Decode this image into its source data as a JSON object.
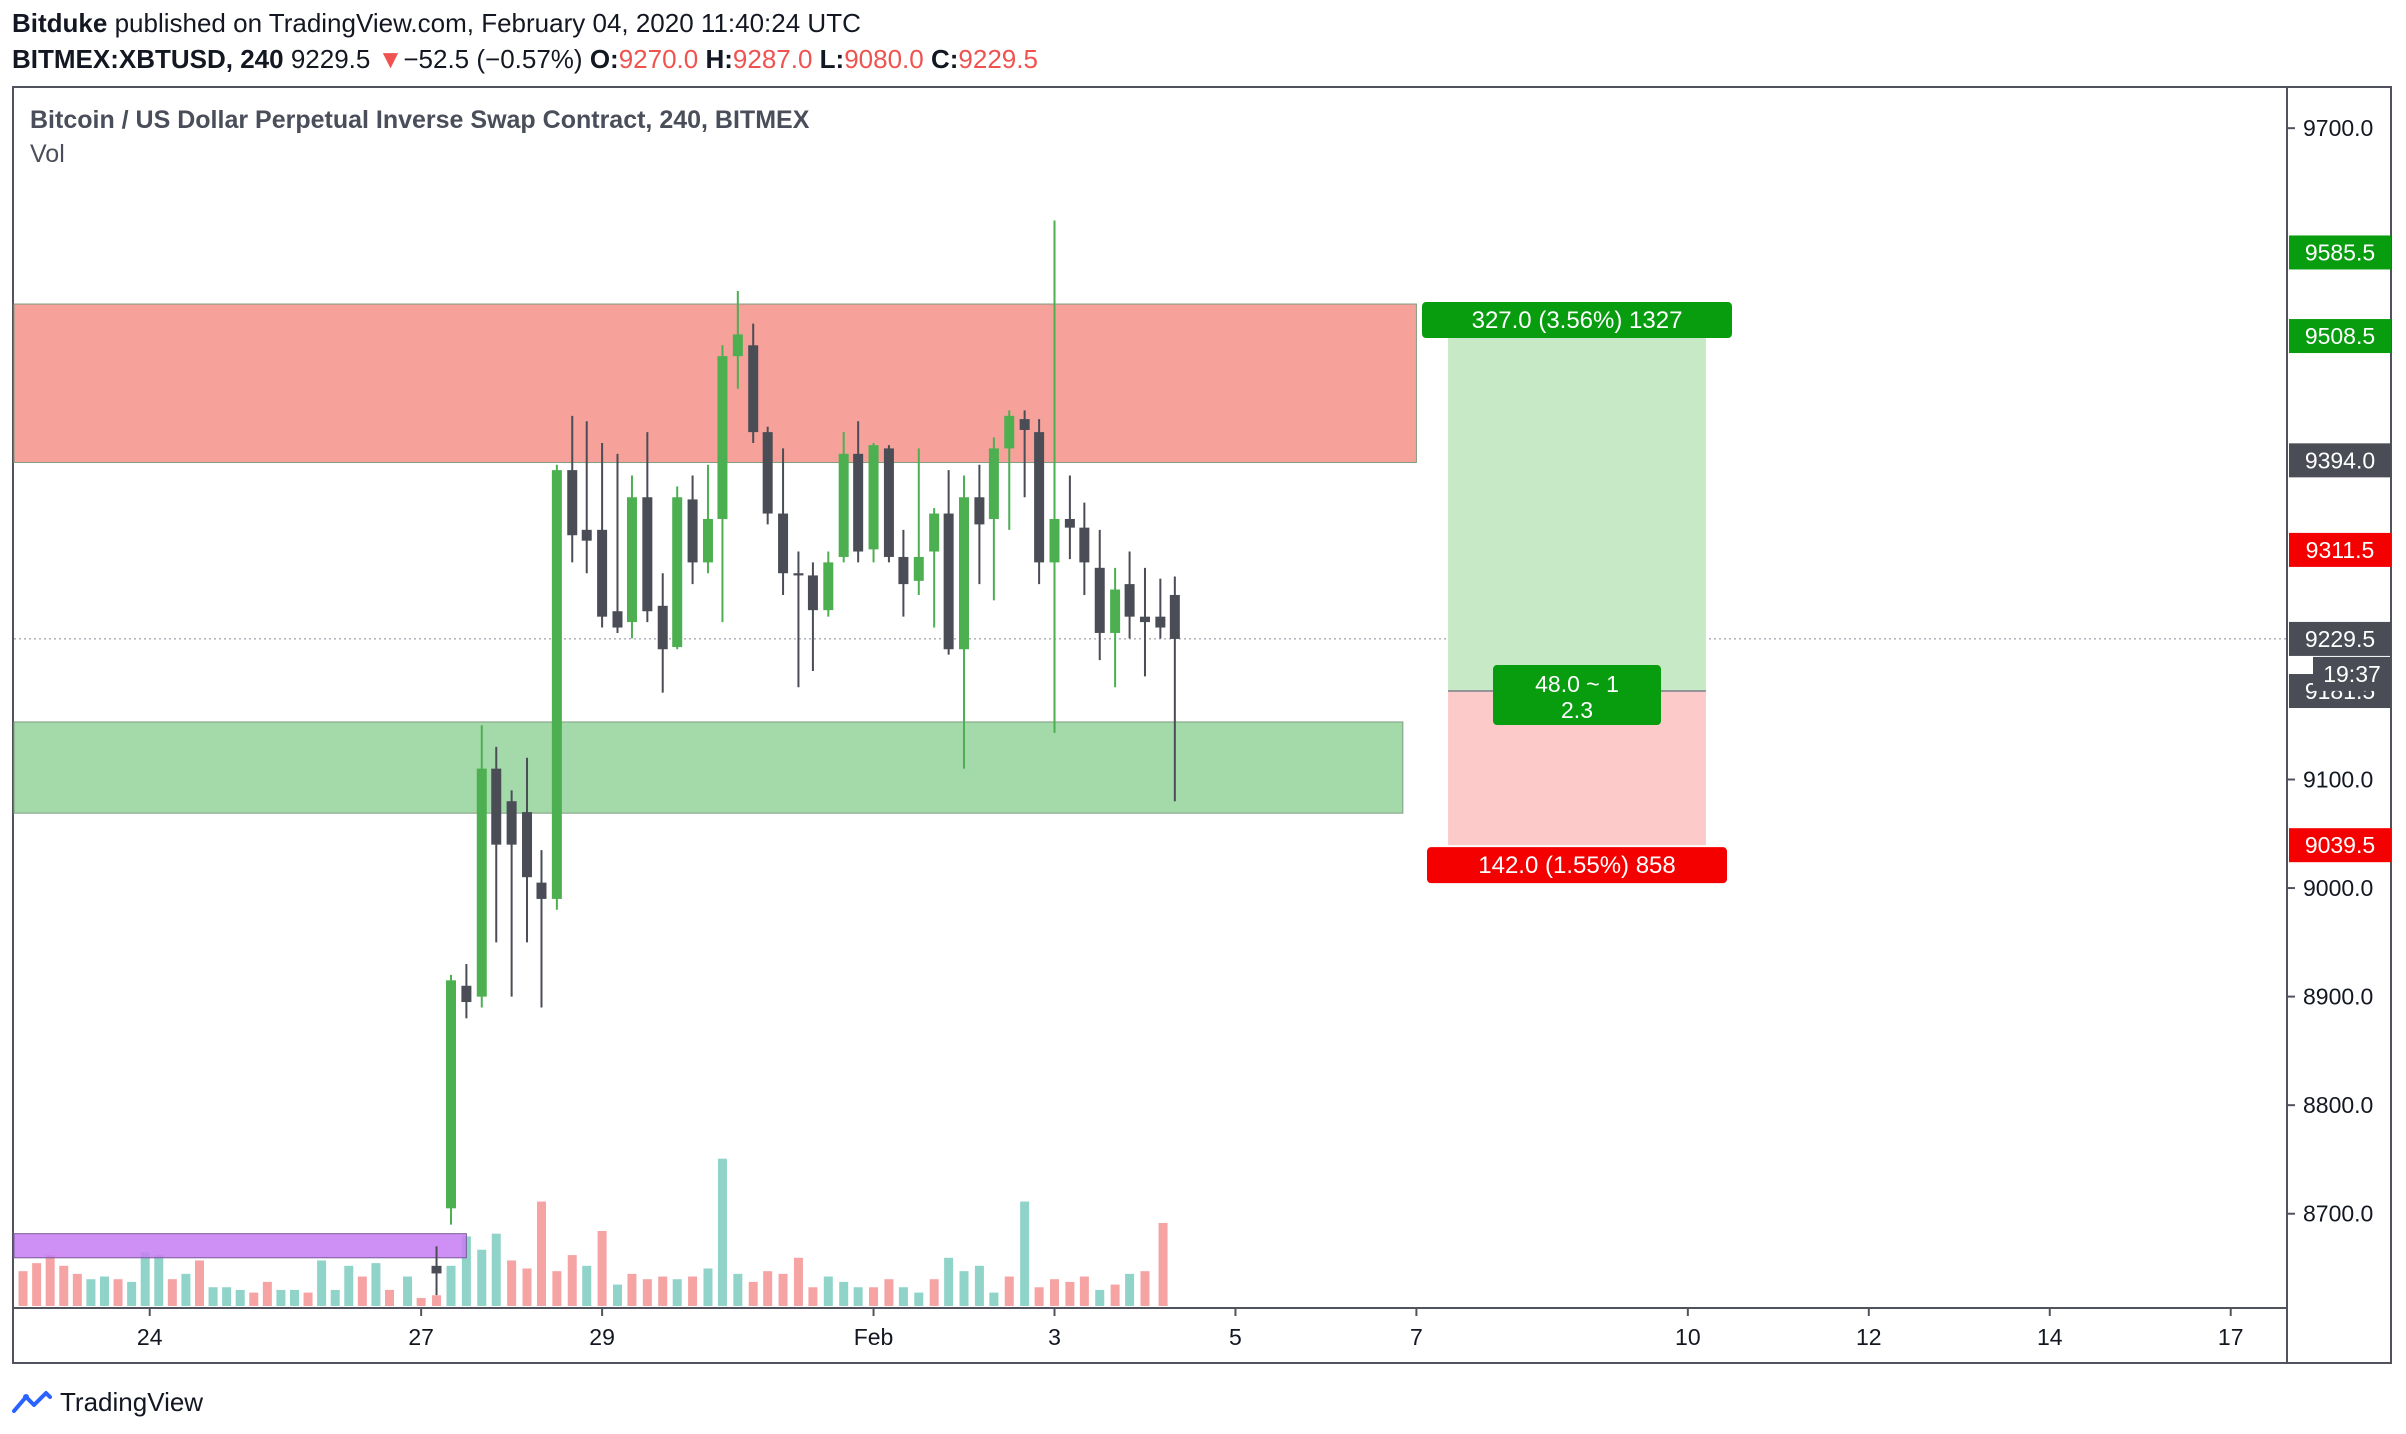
{
  "header": {
    "author": "Bitduke",
    "published": "published on TradingView.com, February 04, 2020 11:40:24 UTC",
    "symbol": "BITMEX:XBTUSD, 240",
    "last": "9229.5",
    "change_arrow": "▼",
    "change": "−52.5 (−0.57%)",
    "o_label": "O:",
    "o": "9270.0",
    "h_label": "H:",
    "h": "9287.0",
    "l_label": "L:",
    "l": "9080.0",
    "c_label": "C:",
    "c": "9229.5"
  },
  "legend": {
    "title": "Bitcoin / US Dollar Perpetual Inverse Swap Contract, 240, BITMEX",
    "vol": "Vol"
  },
  "footer": {
    "brand": "TradingView"
  },
  "colors": {
    "up": "#4caf50",
    "down": "#4a4c56",
    "vol_up": "#8fd3c9",
    "vol_down": "#f5a3a3",
    "resistance_zone": "#f5928a",
    "support_zone": "#94d39a",
    "purple_zone": "#c77df5",
    "target_zone": "#c8e9c6",
    "stop_zone": "#fdcaca",
    "target_label": "#089c0f",
    "stop_label": "#f50000",
    "dark_label": "#4a4c56"
  },
  "chart_data": {
    "type": "candlestick",
    "y_axis": {
      "min": 8615,
      "max": 9737,
      "ticks": [
        "8700.0",
        "8800.0",
        "8900.0",
        "9000.0",
        "9100.0",
        "9700.0"
      ]
    },
    "x_axis": {
      "min": 22.5,
      "max": 47.6,
      "ticks": [
        {
          "x": 24,
          "label": "24"
        },
        {
          "x": 27,
          "label": "27"
        },
        {
          "x": 29,
          "label": "29"
        },
        {
          "x": 32,
          "label": "Feb"
        },
        {
          "x": 34,
          "label": "3"
        },
        {
          "x": 36,
          "label": "5"
        },
        {
          "x": 38,
          "label": "7"
        },
        {
          "x": 41,
          "label": "10"
        },
        {
          "x": 43,
          "label": "12"
        },
        {
          "x": 45,
          "label": "14"
        },
        {
          "x": 47,
          "label": "17"
        }
      ]
    },
    "candles": [
      {
        "x": 27.17,
        "o": 8652,
        "h": 8670,
        "l": 8625,
        "c": 8645
      },
      {
        "x": 27.33,
        "o": 8705,
        "h": 8920,
        "l": 8690,
        "c": 8915
      },
      {
        "x": 27.5,
        "o": 8910,
        "h": 8930,
        "l": 8880,
        "c": 8895
      },
      {
        "x": 27.67,
        "o": 8900,
        "h": 9150,
        "l": 8890,
        "c": 9110
      },
      {
        "x": 27.83,
        "o": 9110,
        "h": 9130,
        "l": 8950,
        "c": 9040
      },
      {
        "x": 28.0,
        "o": 9080,
        "h": 9090,
        "l": 8900,
        "c": 9040
      },
      {
        "x": 28.17,
        "o": 9070,
        "h": 9120,
        "l": 8950,
        "c": 9010
      },
      {
        "x": 28.33,
        "o": 9005,
        "h": 9035,
        "l": 8890,
        "c": 8990
      },
      {
        "x": 28.5,
        "o": 8990,
        "h": 9390,
        "l": 8980,
        "c": 9385
      },
      {
        "x": 28.67,
        "o": 9385,
        "h": 9435,
        "l": 9300,
        "c": 9325
      },
      {
        "x": 28.83,
        "o": 9330,
        "h": 9430,
        "l": 9290,
        "c": 9320
      },
      {
        "x": 29.0,
        "o": 9330,
        "h": 9410,
        "l": 9240,
        "c": 9250
      },
      {
        "x": 29.17,
        "o": 9255,
        "h": 9400,
        "l": 9235,
        "c": 9240
      },
      {
        "x": 29.33,
        "o": 9245,
        "h": 9380,
        "l": 9230,
        "c": 9360
      },
      {
        "x": 29.5,
        "o": 9360,
        "h": 9420,
        "l": 9245,
        "c": 9255
      },
      {
        "x": 29.67,
        "o": 9260,
        "h": 9290,
        "l": 9180,
        "c": 9220
      },
      {
        "x": 29.83,
        "o": 9222,
        "h": 9370,
        "l": 9220,
        "c": 9360
      },
      {
        "x": 30.0,
        "o": 9358,
        "h": 9380,
        "l": 9280,
        "c": 9300
      },
      {
        "x": 30.17,
        "o": 9300,
        "h": 9390,
        "l": 9290,
        "c": 9340
      },
      {
        "x": 30.33,
        "o": 9340,
        "h": 9500,
        "l": 9245,
        "c": 9490
      },
      {
        "x": 30.5,
        "o": 9490,
        "h": 9550,
        "l": 9460,
        "c": 9510
      },
      {
        "x": 30.67,
        "o": 9500,
        "h": 9520,
        "l": 9410,
        "c": 9420
      },
      {
        "x": 30.83,
        "o": 9420,
        "h": 9425,
        "l": 9335,
        "c": 9345
      },
      {
        "x": 31.0,
        "o": 9345,
        "h": 9405,
        "l": 9270,
        "c": 9290
      },
      {
        "x": 31.17,
        "o": 9290,
        "h": 9310,
        "l": 9185,
        "c": 9288
      },
      {
        "x": 31.33,
        "o": 9288,
        "h": 9300,
        "l": 9200,
        "c": 9256
      },
      {
        "x": 31.5,
        "o": 9256,
        "h": 9310,
        "l": 9250,
        "c": 9300
      },
      {
        "x": 31.67,
        "o": 9305,
        "h": 9420,
        "l": 9300,
        "c": 9400
      },
      {
        "x": 31.83,
        "o": 9400,
        "h": 9430,
        "l": 9300,
        "c": 9310
      },
      {
        "x": 32.0,
        "o": 9312,
        "h": 9410,
        "l": 9300,
        "c": 9408
      },
      {
        "x": 32.17,
        "o": 9405,
        "h": 9408,
        "l": 9300,
        "c": 9305
      },
      {
        "x": 32.33,
        "o": 9305,
        "h": 9330,
        "l": 9250,
        "c": 9280
      },
      {
        "x": 32.5,
        "o": 9283,
        "h": 9405,
        "l": 9270,
        "c": 9305
      },
      {
        "x": 32.67,
        "o": 9310,
        "h": 9350,
        "l": 9240,
        "c": 9345
      },
      {
        "x": 32.83,
        "o": 9345,
        "h": 9385,
        "l": 9215,
        "c": 9220
      },
      {
        "x": 33.0,
        "o": 9220,
        "h": 9380,
        "l": 9110,
        "c": 9360
      },
      {
        "x": 33.17,
        "o": 9360,
        "h": 9390,
        "l": 9280,
        "c": 9335
      },
      {
        "x": 33.33,
        "o": 9340,
        "h": 9415,
        "l": 9265,
        "c": 9405
      },
      {
        "x": 33.5,
        "o": 9405,
        "h": 9440,
        "l": 9330,
        "c": 9435
      },
      {
        "x": 33.67,
        "o": 9432,
        "h": 9440,
        "l": 9360,
        "c": 9422
      },
      {
        "x": 33.83,
        "o": 9420,
        "h": 9432,
        "l": 9280,
        "c": 9300
      },
      {
        "x": 34.0,
        "o": 9300,
        "h": 9615,
        "l": 9143,
        "c": 9340
      },
      {
        "x": 34.17,
        "o": 9340,
        "h": 9380,
        "l": 9303,
        "c": 9332
      },
      {
        "x": 34.33,
        "o": 9332,
        "h": 9355,
        "l": 9270,
        "c": 9300
      },
      {
        "x": 34.5,
        "o": 9295,
        "h": 9330,
        "l": 9210,
        "c": 9235
      },
      {
        "x": 34.67,
        "o": 9235,
        "h": 9295,
        "l": 9185,
        "c": 9275
      },
      {
        "x": 34.83,
        "o": 9280,
        "h": 9310,
        "l": 9230,
        "c": 9250
      },
      {
        "x": 35.0,
        "o": 9250,
        "h": 9295,
        "l": 9195,
        "c": 9245
      },
      {
        "x": 35.17,
        "o": 9250,
        "h": 9285,
        "l": 9230,
        "c": 9240
      },
      {
        "x": 35.33,
        "o": 9270,
        "h": 9287,
        "l": 9080,
        "c": 9229.5
      }
    ],
    "volume": [
      {
        "x": 22.6,
        "v": 13,
        "dir": "down"
      },
      {
        "x": 22.75,
        "v": 16,
        "dir": "down"
      },
      {
        "x": 22.9,
        "v": 19,
        "dir": "down"
      },
      {
        "x": 23.05,
        "v": 15,
        "dir": "down"
      },
      {
        "x": 23.2,
        "v": 12,
        "dir": "down"
      },
      {
        "x": 23.35,
        "v": 10,
        "dir": "up"
      },
      {
        "x": 23.5,
        "v": 11,
        "dir": "up"
      },
      {
        "x": 23.65,
        "v": 10,
        "dir": "down"
      },
      {
        "x": 23.8,
        "v": 9,
        "dir": "up"
      },
      {
        "x": 23.95,
        "v": 20,
        "dir": "up"
      },
      {
        "x": 24.1,
        "v": 19,
        "dir": "up"
      },
      {
        "x": 24.25,
        "v": 10,
        "dir": "down"
      },
      {
        "x": 24.4,
        "v": 12,
        "dir": "up"
      },
      {
        "x": 24.55,
        "v": 17,
        "dir": "down"
      },
      {
        "x": 24.7,
        "v": 7,
        "dir": "up"
      },
      {
        "x": 24.85,
        "v": 7,
        "dir": "up"
      },
      {
        "x": 25.0,
        "v": 6,
        "dir": "up"
      },
      {
        "x": 25.15,
        "v": 5,
        "dir": "down"
      },
      {
        "x": 25.3,
        "v": 9,
        "dir": "down"
      },
      {
        "x": 25.45,
        "v": 6,
        "dir": "up"
      },
      {
        "x": 25.6,
        "v": 6,
        "dir": "up"
      },
      {
        "x": 25.75,
        "v": 5,
        "dir": "down"
      },
      {
        "x": 25.9,
        "v": 17,
        "dir": "up"
      },
      {
        "x": 26.05,
        "v": 6,
        "dir": "up"
      },
      {
        "x": 26.2,
        "v": 15,
        "dir": "up"
      },
      {
        "x": 26.35,
        "v": 11,
        "dir": "down"
      },
      {
        "x": 26.5,
        "v": 16,
        "dir": "up"
      },
      {
        "x": 26.65,
        "v": 6,
        "dir": "down"
      },
      {
        "x": 26.85,
        "v": 11,
        "dir": "up"
      },
      {
        "x": 27.0,
        "v": 3,
        "dir": "down"
      },
      {
        "x": 27.17,
        "v": 4,
        "dir": "down"
      },
      {
        "x": 27.33,
        "v": 15,
        "dir": "up"
      },
      {
        "x": 27.5,
        "v": 26,
        "dir": "up"
      },
      {
        "x": 27.67,
        "v": 21,
        "dir": "up"
      },
      {
        "x": 27.83,
        "v": 27,
        "dir": "up"
      },
      {
        "x": 28.0,
        "v": 17,
        "dir": "down"
      },
      {
        "x": 28.17,
        "v": 14,
        "dir": "down"
      },
      {
        "x": 28.33,
        "v": 39,
        "dir": "down"
      },
      {
        "x": 28.5,
        "v": 13,
        "dir": "down"
      },
      {
        "x": 28.67,
        "v": 19,
        "dir": "down"
      },
      {
        "x": 28.83,
        "v": 15,
        "dir": "up"
      },
      {
        "x": 29.0,
        "v": 28,
        "dir": "down"
      },
      {
        "x": 29.17,
        "v": 8,
        "dir": "up"
      },
      {
        "x": 29.33,
        "v": 12,
        "dir": "down"
      },
      {
        "x": 29.5,
        "v": 10,
        "dir": "down"
      },
      {
        "x": 29.67,
        "v": 11,
        "dir": "down"
      },
      {
        "x": 29.83,
        "v": 10,
        "dir": "up"
      },
      {
        "x": 30.0,
        "v": 11,
        "dir": "down"
      },
      {
        "x": 30.17,
        "v": 14,
        "dir": "up"
      },
      {
        "x": 30.33,
        "v": 55,
        "dir": "up"
      },
      {
        "x": 30.5,
        "v": 12,
        "dir": "up"
      },
      {
        "x": 30.67,
        "v": 9,
        "dir": "down"
      },
      {
        "x": 30.83,
        "v": 13,
        "dir": "down"
      },
      {
        "x": 31.0,
        "v": 12,
        "dir": "down"
      },
      {
        "x": 31.17,
        "v": 18,
        "dir": "down"
      },
      {
        "x": 31.33,
        "v": 7,
        "dir": "down"
      },
      {
        "x": 31.5,
        "v": 11,
        "dir": "up"
      },
      {
        "x": 31.67,
        "v": 9,
        "dir": "up"
      },
      {
        "x": 31.83,
        "v": 7,
        "dir": "up"
      },
      {
        "x": 32.0,
        "v": 7,
        "dir": "down"
      },
      {
        "x": 32.17,
        "v": 10,
        "dir": "down"
      },
      {
        "x": 32.33,
        "v": 7,
        "dir": "up"
      },
      {
        "x": 32.5,
        "v": 5,
        "dir": "up"
      },
      {
        "x": 32.67,
        "v": 10,
        "dir": "down"
      },
      {
        "x": 32.83,
        "v": 18,
        "dir": "up"
      },
      {
        "x": 33.0,
        "v": 13,
        "dir": "up"
      },
      {
        "x": 33.17,
        "v": 15,
        "dir": "up"
      },
      {
        "x": 33.33,
        "v": 5,
        "dir": "up"
      },
      {
        "x": 33.5,
        "v": 11,
        "dir": "down"
      },
      {
        "x": 33.67,
        "v": 39,
        "dir": "up"
      },
      {
        "x": 33.83,
        "v": 7,
        "dir": "down"
      },
      {
        "x": 34.0,
        "v": 10,
        "dir": "down"
      },
      {
        "x": 34.17,
        "v": 9,
        "dir": "down"
      },
      {
        "x": 34.33,
        "v": 11,
        "dir": "down"
      },
      {
        "x": 34.5,
        "v": 6,
        "dir": "up"
      },
      {
        "x": 34.67,
        "v": 8,
        "dir": "down"
      },
      {
        "x": 34.83,
        "v": 12,
        "dir": "up"
      },
      {
        "x": 35.0,
        "v": 13,
        "dir": "down"
      },
      {
        "x": 35.2,
        "v": 31,
        "dir": "down"
      }
    ],
    "zones": [
      {
        "name": "resistance-zone",
        "x0": 22.5,
        "x1": 38.0,
        "y0": 9392,
        "y1": 9538,
        "color": "#f5928a"
      },
      {
        "name": "support-zone",
        "x0": 22.5,
        "x1": 37.85,
        "y0": 9069,
        "y1": 9153,
        "color": "#94d39a"
      }
    ],
    "volume_zone": {
      "x0": 22.5,
      "x1": 27.5,
      "v0": 18,
      "v1": 27,
      "color": "#c77df5"
    },
    "position": {
      "x0": 38.35,
      "x1": 41.2,
      "entry": 9181.5,
      "target": 9508.5,
      "stop": 9039.5,
      "target_label": "327.0 (3.56%) 1327",
      "stop_label": "142.0 (1.55%) 858",
      "ratio_line1": "48.0 ~ 1",
      "ratio_line2": "2.3"
    },
    "current_price": 9229.5,
    "price_labels": [
      {
        "price": 9585.5,
        "text": "9585.5",
        "kind": "target"
      },
      {
        "price": 9508.5,
        "text": "9508.5",
        "kind": "target"
      },
      {
        "price": 9394.0,
        "text": "9394.0",
        "kind": "dark"
      },
      {
        "price": 9311.5,
        "text": "9311.5",
        "kind": "stop"
      },
      {
        "price": 9229.5,
        "text": "9229.5",
        "kind": "dark"
      },
      {
        "price": 9181.5,
        "text": "9181.5",
        "kind": "dark"
      },
      {
        "price": 9039.5,
        "text": "9039.5",
        "kind": "stop"
      }
    ],
    "countdown": "19:37"
  }
}
